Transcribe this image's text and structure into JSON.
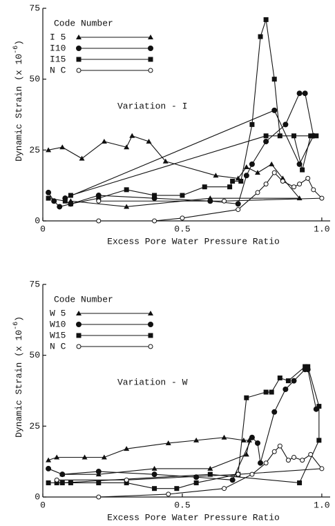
{
  "chart_data": [
    {
      "type": "line",
      "annotation": "Variation - I",
      "xlabel": "Excess Pore Water Pressure Ratio",
      "ylabel": {
        "text": "Dynamic Strain  (x 10",
        "sup": "-6",
        "close": ")"
      },
      "legend_title": "Code Number",
      "xlim": [
        0,
        1.03
      ],
      "xticks": [
        0,
        0.5,
        {
          "value": 1,
          "label": "1.0"
        }
      ],
      "ylim": [
        0,
        75
      ],
      "yticks": [
        0,
        25,
        50,
        75
      ],
      "series": [
        {
          "name": "I 5",
          "color": "#111",
          "marker": "triangle",
          "x": [
            0.02,
            0.07,
            0.14,
            0.22,
            0.3,
            0.32,
            0.38,
            0.44,
            0.62,
            0.7,
            0.73,
            0.77,
            0.82,
            0.86,
            0.92,
            0.6,
            0.3,
            0.1
          ],
          "values": [
            25,
            26,
            22,
            28,
            26,
            30,
            28,
            21,
            16,
            15,
            19,
            17,
            20,
            15,
            8,
            8,
            5,
            7
          ]
        },
        {
          "name": "I10",
          "color": "#111",
          "marker": "circle",
          "x": [
            0.02,
            0.04,
            0.06,
            0.1,
            0.2,
            0.4,
            0.6,
            0.7,
            0.73,
            0.75,
            0.8,
            0.87,
            0.92,
            0.94,
            0.97,
            0.92,
            0.83,
            0.08
          ],
          "values": [
            10,
            7,
            5,
            6,
            9,
            8,
            7,
            6,
            16,
            20,
            28,
            34,
            45,
            45,
            30,
            20,
            39,
            8
          ]
        },
        {
          "name": "I15",
          "color": "#111",
          "marker": "square",
          "x": [
            0.02,
            0.08,
            0.1,
            0.2,
            0.3,
            0.4,
            0.5,
            0.58,
            0.67,
            0.68,
            0.71,
            0.75,
            0.78,
            0.8,
            0.83,
            0.85,
            0.9,
            0.93,
            0.96,
            0.98,
            0.8,
            0.1
          ],
          "values": [
            8,
            7,
            6,
            8,
            11,
            9,
            9,
            12,
            12,
            14,
            14,
            34,
            65,
            71,
            50,
            30,
            30,
            18,
            30,
            30,
            30,
            9
          ]
        },
        {
          "name": "N C",
          "color": "#111",
          "marker": "open",
          "x": [
            0.2,
            0.4,
            0.5,
            0.7,
            0.77,
            0.8,
            0.83,
            0.86,
            0.9,
            0.92,
            0.95,
            0.97,
            1.0,
            0.65,
            0.2
          ],
          "values": [
            0,
            0,
            1,
            4,
            10,
            13,
            17,
            14,
            12,
            13,
            15,
            11,
            8,
            7,
            7
          ]
        }
      ]
    },
    {
      "type": "line",
      "annotation": "Variation - W",
      "xlabel": "Excess Pore Water Pressure Ratio",
      "ylabel": {
        "text": "Dynamic Strain  (x 10",
        "sup": "-6",
        "close": ")"
      },
      "legend_title": "Code Number",
      "xlim": [
        0,
        1.03
      ],
      "xticks": [
        0,
        0.5,
        {
          "value": 1,
          "label": "1.0"
        }
      ],
      "ylim": [
        0,
        75
      ],
      "yticks": [
        0,
        25,
        50,
        75
      ],
      "series": [
        {
          "name": "W 5",
          "color": "#111",
          "marker": "triangle",
          "x": [
            0.02,
            0.05,
            0.15,
            0.22,
            0.3,
            0.45,
            0.55,
            0.65,
            0.72,
            0.74,
            0.73,
            0.6,
            0.4,
            0.2,
            0.07
          ],
          "values": [
            13,
            14,
            14,
            14,
            17,
            19,
            20,
            21,
            20,
            20,
            15,
            10,
            10,
            8,
            8
          ]
        },
        {
          "name": "W10",
          "color": "#111",
          "marker": "circle",
          "x": [
            0.02,
            0.07,
            0.2,
            0.4,
            0.55,
            0.68,
            0.75,
            0.77,
            0.78,
            0.83,
            0.87,
            0.9,
            0.94,
            0.95,
            0.98
          ],
          "values": [
            10,
            8,
            9,
            8,
            7,
            6,
            21,
            19,
            12,
            30,
            38,
            41,
            45,
            45,
            31
          ]
        },
        {
          "name": "W15",
          "color": "#111",
          "marker": "square",
          "x": [
            0.02,
            0.05,
            0.1,
            0.2,
            0.3,
            0.4,
            0.48,
            0.55,
            0.7,
            0.73,
            0.8,
            0.82,
            0.85,
            0.88,
            0.94,
            0.95,
            0.99,
            0.99,
            0.92,
            0.6,
            0.07
          ],
          "values": [
            5,
            5,
            5,
            5,
            5,
            3,
            3,
            5,
            8,
            35,
            37,
            37,
            42,
            41,
            46,
            46,
            32,
            20,
            5,
            8,
            5
          ]
        },
        {
          "name": "N C",
          "color": "#111",
          "marker": "open",
          "x": [
            0.2,
            0.45,
            0.65,
            0.75,
            0.8,
            0.83,
            0.85,
            0.88,
            0.9,
            0.93,
            0.96,
            1.0,
            0.7,
            0.3,
            0.05
          ],
          "values": [
            0,
            1,
            3,
            8,
            12,
            16,
            18,
            13,
            14,
            13,
            15,
            10,
            8,
            6,
            6
          ]
        }
      ]
    }
  ]
}
